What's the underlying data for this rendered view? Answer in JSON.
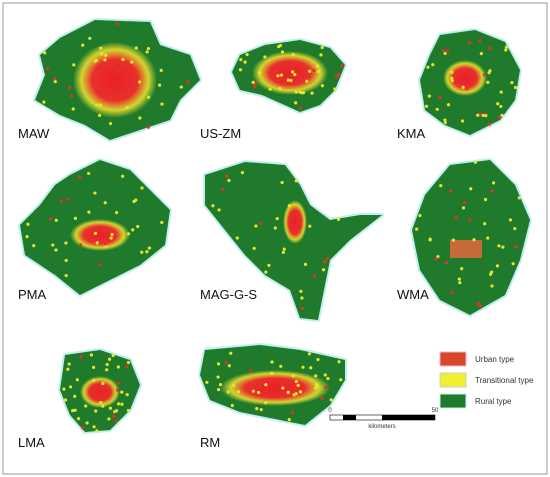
{
  "regions": [
    {
      "label": "MAW"
    },
    {
      "label": "US-ZM"
    },
    {
      "label": "KMA"
    },
    {
      "label": "PMA"
    },
    {
      "label": "MAG-G-S"
    },
    {
      "label": "WMA"
    },
    {
      "label": "LMA"
    },
    {
      "label": "RM"
    }
  ],
  "legend": {
    "items": [
      {
        "label": "Urban type"
      },
      {
        "label": "Transitional type"
      },
      {
        "label": "Rural type"
      }
    ]
  },
  "scale_bar": {
    "start": "0",
    "end": "50",
    "unit": "kilometers"
  }
}
